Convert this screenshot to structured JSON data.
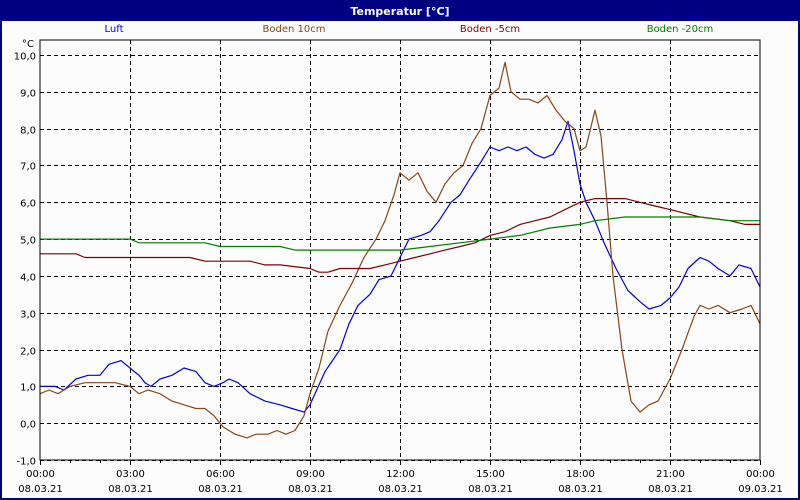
{
  "window": {
    "title": "Temperatur [°C]",
    "border_color": "#000080",
    "background": "#fcfcfc"
  },
  "legend": [
    {
      "label": "Luft",
      "color": "#0000e0"
    },
    {
      "label": "Boden 10cm",
      "color": "#8b4513"
    },
    {
      "label": "Boden -5cm",
      "color": "#800000"
    },
    {
      "label": "Boden -20cm",
      "color": "#008000"
    }
  ],
  "axis": {
    "unit_label": "°C",
    "y_ticks": [
      "10,0",
      "9,0",
      "8,0",
      "7,0",
      "6,0",
      "5,0",
      "4,0",
      "3,0",
      "2,0",
      "1,0",
      "0,0",
      "-1,0"
    ],
    "x_ticks": [
      {
        "time": "00:00",
        "date": "08.03.21"
      },
      {
        "time": "03:00",
        "date": "08.03.21"
      },
      {
        "time": "06:00",
        "date": "08.03.21"
      },
      {
        "time": "09:00",
        "date": "08.03.21"
      },
      {
        "time": "12:00",
        "date": "08.03.21"
      },
      {
        "time": "15:00",
        "date": "08.03.21"
      },
      {
        "time": "18:00",
        "date": "08.03.21"
      },
      {
        "time": "21:00",
        "date": "08.03.21"
      },
      {
        "time": "00:00",
        "date": "09.03.21"
      }
    ]
  },
  "chart_data": {
    "type": "line",
    "title": "Temperatur [°C]",
    "xlabel": "",
    "ylabel": "°C",
    "ylim": [
      -1.0,
      10.0
    ],
    "xlim_hours": [
      0,
      24
    ],
    "grid": true,
    "legend_position": "top",
    "x_unit": "hours since 08.03.21 00:00",
    "series": [
      {
        "name": "Luft",
        "color": "#0000e0",
        "points": [
          [
            0,
            1.0
          ],
          [
            0.5,
            1.0
          ],
          [
            0.8,
            0.9
          ],
          [
            1.2,
            1.2
          ],
          [
            1.6,
            1.3
          ],
          [
            2.0,
            1.3
          ],
          [
            2.3,
            1.6
          ],
          [
            2.7,
            1.7
          ],
          [
            3.0,
            1.5
          ],
          [
            3.3,
            1.3
          ],
          [
            3.5,
            1.1
          ],
          [
            3.7,
            1.0
          ],
          [
            4.0,
            1.2
          ],
          [
            4.4,
            1.3
          ],
          [
            4.8,
            1.5
          ],
          [
            5.2,
            1.4
          ],
          [
            5.5,
            1.1
          ],
          [
            5.8,
            1.0
          ],
          [
            6.1,
            1.1
          ],
          [
            6.3,
            1.2
          ],
          [
            6.6,
            1.1
          ],
          [
            7.0,
            0.8
          ],
          [
            7.5,
            0.6
          ],
          [
            8.0,
            0.5
          ],
          [
            8.4,
            0.4
          ],
          [
            8.8,
            0.3
          ],
          [
            9.0,
            0.5
          ],
          [
            9.5,
            1.4
          ],
          [
            10.0,
            2.0
          ],
          [
            10.3,
            2.7
          ],
          [
            10.6,
            3.2
          ],
          [
            11.0,
            3.5
          ],
          [
            11.3,
            3.9
          ],
          [
            11.7,
            4.0
          ],
          [
            12.0,
            4.5
          ],
          [
            12.3,
            5.0
          ],
          [
            12.7,
            5.1
          ],
          [
            13.0,
            5.2
          ],
          [
            13.3,
            5.5
          ],
          [
            13.7,
            6.0
          ],
          [
            14.0,
            6.2
          ],
          [
            14.3,
            6.6
          ],
          [
            14.7,
            7.1
          ],
          [
            15.0,
            7.5
          ],
          [
            15.3,
            7.4
          ],
          [
            15.6,
            7.5
          ],
          [
            15.9,
            7.4
          ],
          [
            16.2,
            7.5
          ],
          [
            16.5,
            7.3
          ],
          [
            16.8,
            7.2
          ],
          [
            17.1,
            7.3
          ],
          [
            17.4,
            7.7
          ],
          [
            17.6,
            8.2
          ],
          [
            17.8,
            7.4
          ],
          [
            18.0,
            6.5
          ],
          [
            18.2,
            6.0
          ],
          [
            18.5,
            5.5
          ],
          [
            18.8,
            4.9
          ],
          [
            19.2,
            4.2
          ],
          [
            19.6,
            3.6
          ],
          [
            20.0,
            3.3
          ],
          [
            20.3,
            3.1
          ],
          [
            20.7,
            3.2
          ],
          [
            21.0,
            3.4
          ],
          [
            21.3,
            3.7
          ],
          [
            21.6,
            4.2
          ],
          [
            22.0,
            4.5
          ],
          [
            22.3,
            4.4
          ],
          [
            22.6,
            4.2
          ],
          [
            23.0,
            4.0
          ],
          [
            23.3,
            4.3
          ],
          [
            23.7,
            4.2
          ],
          [
            24.0,
            3.7
          ]
        ]
      },
      {
        "name": "Boden 10cm",
        "color": "#8b4513",
        "points": [
          [
            0,
            0.8
          ],
          [
            0.3,
            0.9
          ],
          [
            0.6,
            0.8
          ],
          [
            1.0,
            1.0
          ],
          [
            1.5,
            1.1
          ],
          [
            2.0,
            1.1
          ],
          [
            2.5,
            1.1
          ],
          [
            3.0,
            1.0
          ],
          [
            3.3,
            0.8
          ],
          [
            3.6,
            0.9
          ],
          [
            4.0,
            0.8
          ],
          [
            4.4,
            0.6
          ],
          [
            4.8,
            0.5
          ],
          [
            5.2,
            0.4
          ],
          [
            5.5,
            0.4
          ],
          [
            5.8,
            0.2
          ],
          [
            6.1,
            -0.1
          ],
          [
            6.5,
            -0.3
          ],
          [
            6.9,
            -0.4
          ],
          [
            7.2,
            -0.3
          ],
          [
            7.6,
            -0.3
          ],
          [
            7.9,
            -0.2
          ],
          [
            8.2,
            -0.3
          ],
          [
            8.5,
            -0.2
          ],
          [
            8.8,
            0.2
          ],
          [
            9.0,
            0.8
          ],
          [
            9.3,
            1.5
          ],
          [
            9.6,
            2.5
          ],
          [
            10.0,
            3.2
          ],
          [
            10.4,
            3.8
          ],
          [
            10.8,
            4.5
          ],
          [
            11.2,
            5.0
          ],
          [
            11.5,
            5.5
          ],
          [
            11.8,
            6.2
          ],
          [
            12.0,
            6.8
          ],
          [
            12.3,
            6.6
          ],
          [
            12.6,
            6.8
          ],
          [
            12.9,
            6.3
          ],
          [
            13.2,
            6.0
          ],
          [
            13.5,
            6.5
          ],
          [
            13.8,
            6.8
          ],
          [
            14.1,
            7.0
          ],
          [
            14.4,
            7.6
          ],
          [
            14.7,
            8.0
          ],
          [
            15.0,
            8.9
          ],
          [
            15.3,
            9.1
          ],
          [
            15.5,
            9.8
          ],
          [
            15.7,
            9.0
          ],
          [
            16.0,
            8.8
          ],
          [
            16.3,
            8.8
          ],
          [
            16.6,
            8.7
          ],
          [
            16.9,
            8.9
          ],
          [
            17.2,
            8.5
          ],
          [
            17.5,
            8.2
          ],
          [
            17.8,
            8.0
          ],
          [
            18.0,
            7.4
          ],
          [
            18.2,
            7.5
          ],
          [
            18.5,
            8.5
          ],
          [
            18.7,
            7.8
          ],
          [
            18.9,
            6.0
          ],
          [
            19.1,
            4.0
          ],
          [
            19.4,
            2.0
          ],
          [
            19.7,
            0.6
          ],
          [
            20.0,
            0.3
          ],
          [
            20.3,
            0.5
          ],
          [
            20.6,
            0.6
          ],
          [
            21.0,
            1.2
          ],
          [
            21.4,
            2.0
          ],
          [
            21.8,
            2.9
          ],
          [
            22.0,
            3.2
          ],
          [
            22.3,
            3.1
          ],
          [
            22.6,
            3.2
          ],
          [
            23.0,
            3.0
          ],
          [
            23.4,
            3.1
          ],
          [
            23.7,
            3.2
          ],
          [
            24.0,
            2.7
          ]
        ]
      },
      {
        "name": "Boden -5cm",
        "color": "#800000",
        "points": [
          [
            0,
            4.6
          ],
          [
            1.2,
            4.6
          ],
          [
            1.5,
            4.5
          ],
          [
            3.0,
            4.5
          ],
          [
            5.0,
            4.5
          ],
          [
            5.5,
            4.4
          ],
          [
            6.0,
            4.4
          ],
          [
            7.0,
            4.4
          ],
          [
            7.5,
            4.3
          ],
          [
            8.0,
            4.3
          ],
          [
            9.0,
            4.2
          ],
          [
            9.3,
            4.1
          ],
          [
            9.6,
            4.1
          ],
          [
            10.0,
            4.2
          ],
          [
            11.0,
            4.2
          ],
          [
            11.5,
            4.3
          ],
          [
            12.0,
            4.4
          ],
          [
            12.5,
            4.5
          ],
          [
            13.0,
            4.6
          ],
          [
            13.5,
            4.7
          ],
          [
            14.0,
            4.8
          ],
          [
            14.5,
            4.9
          ],
          [
            15.0,
            5.1
          ],
          [
            15.5,
            5.2
          ],
          [
            16.0,
            5.4
          ],
          [
            16.5,
            5.5
          ],
          [
            17.0,
            5.6
          ],
          [
            17.5,
            5.8
          ],
          [
            18.0,
            6.0
          ],
          [
            18.5,
            6.1
          ],
          [
            19.5,
            6.1
          ],
          [
            20.0,
            6.0
          ],
          [
            20.5,
            5.9
          ],
          [
            21.0,
            5.8
          ],
          [
            21.5,
            5.7
          ],
          [
            22.0,
            5.6
          ],
          [
            23.0,
            5.5
          ],
          [
            23.5,
            5.4
          ],
          [
            24.0,
            5.4
          ]
        ]
      },
      {
        "name": "Boden -20cm",
        "color": "#008000",
        "points": [
          [
            0,
            5.0
          ],
          [
            3.0,
            5.0
          ],
          [
            3.3,
            4.9
          ],
          [
            5.5,
            4.9
          ],
          [
            6.0,
            4.8
          ],
          [
            8.0,
            4.8
          ],
          [
            8.5,
            4.7
          ],
          [
            10.0,
            4.7
          ],
          [
            12.0,
            4.7
          ],
          [
            13.0,
            4.8
          ],
          [
            14.0,
            4.9
          ],
          [
            15.0,
            5.0
          ],
          [
            16.0,
            5.1
          ],
          [
            17.0,
            5.3
          ],
          [
            18.0,
            5.4
          ],
          [
            18.5,
            5.5
          ],
          [
            19.5,
            5.6
          ],
          [
            21.0,
            5.6
          ],
          [
            22.0,
            5.6
          ],
          [
            23.0,
            5.5
          ],
          [
            24.0,
            5.5
          ]
        ]
      }
    ]
  }
}
